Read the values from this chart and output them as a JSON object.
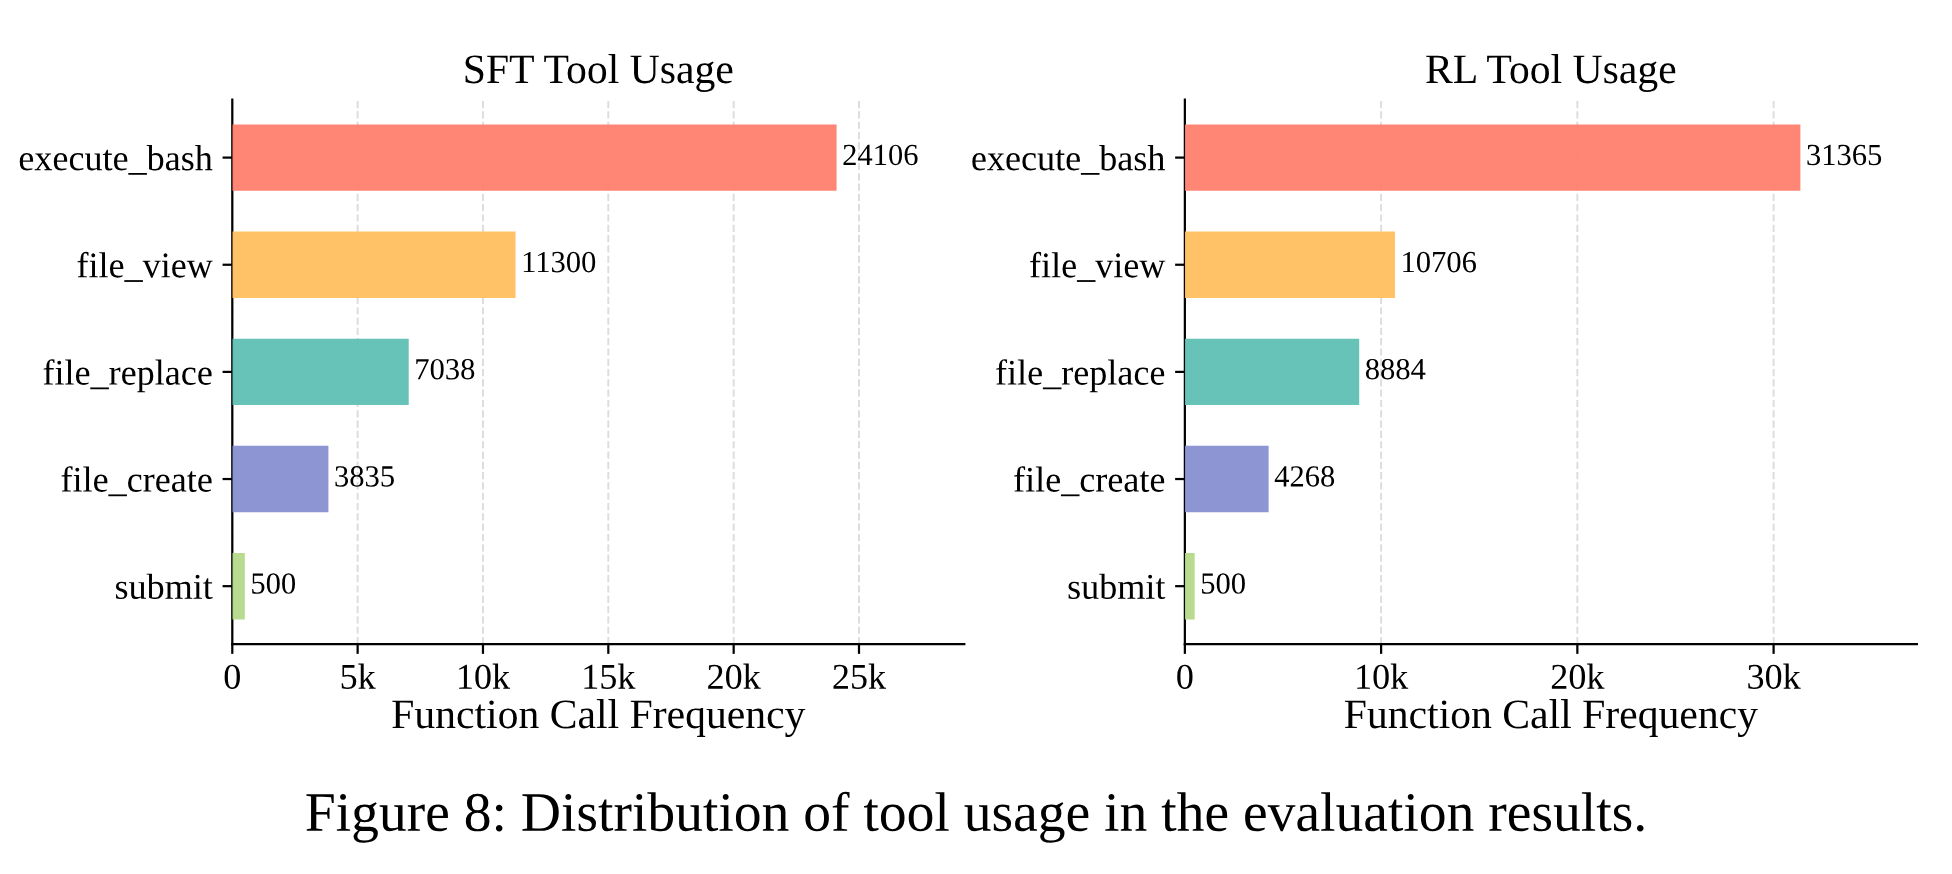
{
  "chart_data": [
    {
      "type": "bar",
      "orientation": "horizontal",
      "title": "SFT Tool Usage",
      "xlabel": "Function Call Frequency",
      "categories": [
        "execute_bash",
        "file_view",
        "file_replace",
        "file_create",
        "submit"
      ],
      "values": [
        24106,
        11300,
        7038,
        3835,
        500
      ],
      "colors": [
        "#ff7f6e",
        "#ffbf5f",
        "#5fbfb3",
        "#8790d0",
        "#b5d98a"
      ],
      "xlim": [
        0,
        29200
      ],
      "xticks": [
        0,
        {
          "value": 5000,
          "label": "5k"
        },
        {
          "value": 10000,
          "label": "10k"
        },
        {
          "value": 15000,
          "label": "15k"
        },
        {
          "value": 20000,
          "label": "20k"
        },
        {
          "value": 25000,
          "label": "25k"
        }
      ],
      "grid": "x",
      "data_labels": true,
      "legend": false,
      "annotations": [
        "Figure 8: Distribution of tool usage in the evaluation results."
      ]
    },
    {
      "type": "bar",
      "orientation": "horizontal",
      "title": "RL Tool Usage",
      "xlabel": "Function Call Frequency",
      "categories": [
        "execute_bash",
        "file_view",
        "file_replace",
        "file_create",
        "submit"
      ],
      "values": [
        31365,
        10706,
        8884,
        4268,
        500
      ],
      "colors": [
        "#ff7f6e",
        "#ffbf5f",
        "#5fbfb3",
        "#8790d0",
        "#b5d98a"
      ],
      "xlim": [
        0,
        37300
      ],
      "xticks": [
        0,
        {
          "value": 10000,
          "label": "10k"
        },
        {
          "value": 20000,
          "label": "20k"
        },
        {
          "value": 30000,
          "label": "30k"
        }
      ],
      "grid": "x",
      "data_labels": true,
      "legend": false
    }
  ]
}
